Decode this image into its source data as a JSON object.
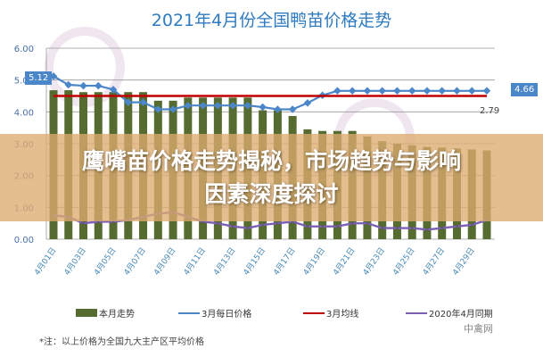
{
  "chart_data": {
    "type": "bar+line",
    "title": "2021年4月份全国鸭苗价格走势",
    "categories": [
      "4月01日",
      "4月02日",
      "4月03日",
      "4月04日",
      "4月05日",
      "4月06日",
      "4月07日",
      "4月08日",
      "4月09日",
      "4月10日",
      "4月11日",
      "4月12日",
      "4月13日",
      "4月14日",
      "4月15日",
      "4月16日",
      "4月17日",
      "4月18日",
      "4月19日",
      "4月20日",
      "4月21日",
      "4月22日",
      "4月23日",
      "4月24日",
      "4月25日",
      "4月26日",
      "4月27日",
      "4月28日",
      "4月29日",
      "4月30日"
    ],
    "xtick_labels": [
      "4月01日",
      "4月03日",
      "4月05日",
      "4月07日",
      "4月09日",
      "4月11日",
      "4月13日",
      "4月15日",
      "4月17日",
      "4月19日",
      "4月21日",
      "4月23日",
      "4月25日",
      "4月27日",
      "4月29日"
    ],
    "yticks": [
      "0.00",
      "1.00",
      "2.00",
      "3.00",
      "4.00",
      "5.00",
      "6.00"
    ],
    "ylim": [
      0,
      6
    ],
    "grid": true,
    "legend_position": "bottom",
    "series": [
      {
        "name": "本月走势",
        "type": "bar",
        "color": "#556b2f",
        "values": [
          4.68,
          4.68,
          4.62,
          4.62,
          4.62,
          4.62,
          4.62,
          4.35,
          4.35,
          4.45,
          4.45,
          4.45,
          4.45,
          4.45,
          4.05,
          4.05,
          3.87,
          3.45,
          3.4,
          3.4,
          3.4,
          3.23,
          3.08,
          3.0,
          2.95,
          2.9,
          2.88,
          2.85,
          2.82,
          2.79
        ]
      },
      {
        "name": "3月每日价格",
        "type": "line",
        "marker": "diamond",
        "color": "#4a86c8",
        "values": [
          5.12,
          4.85,
          4.82,
          4.82,
          4.7,
          4.3,
          4.3,
          4.08,
          4.08,
          4.2,
          4.2,
          4.2,
          4.2,
          4.2,
          4.15,
          4.08,
          4.08,
          4.28,
          4.52,
          4.66,
          4.66,
          4.66,
          4.66,
          4.66,
          4.66,
          4.66,
          4.66,
          4.66,
          4.66,
          4.66
        ]
      },
      {
        "name": "3月均线",
        "type": "line",
        "color": "#c00000",
        "values": [
          4.5,
          4.5,
          4.5,
          4.5,
          4.5,
          4.5,
          4.5,
          4.5,
          4.5,
          4.5,
          4.5,
          4.5,
          4.5,
          4.5,
          4.5,
          4.5,
          4.5,
          4.5,
          4.5,
          4.5,
          4.5,
          4.5,
          4.5,
          4.5,
          4.5,
          4.5,
          4.5,
          4.5,
          4.5,
          4.5
        ]
      },
      {
        "name": "2020年4月同期",
        "type": "line",
        "marker": "x",
        "color": "#7b5fb5",
        "values": [
          0.75,
          0.7,
          0.5,
          0.55,
          0.55,
          0.6,
          0.7,
          0.8,
          0.85,
          0.7,
          0.55,
          0.5,
          0.4,
          0.35,
          0.45,
          0.5,
          0.55,
          0.4,
          0.4,
          0.4,
          0.5,
          0.5,
          0.35,
          0.35,
          0.35,
          0.3,
          0.35,
          0.4,
          0.45,
          0.6
        ]
      }
    ],
    "data_labels": {
      "first_blue": "5.12",
      "last_blue": "4.66",
      "last_bar": "2.79"
    }
  },
  "note": "*注：以上价格为全国九大主产区平均价格",
  "watermark": "中禽网",
  "banner": {
    "line1": "鹰嘴苗价格走势揭秘，市场趋势与影响",
    "line2": "因素深度探讨"
  }
}
